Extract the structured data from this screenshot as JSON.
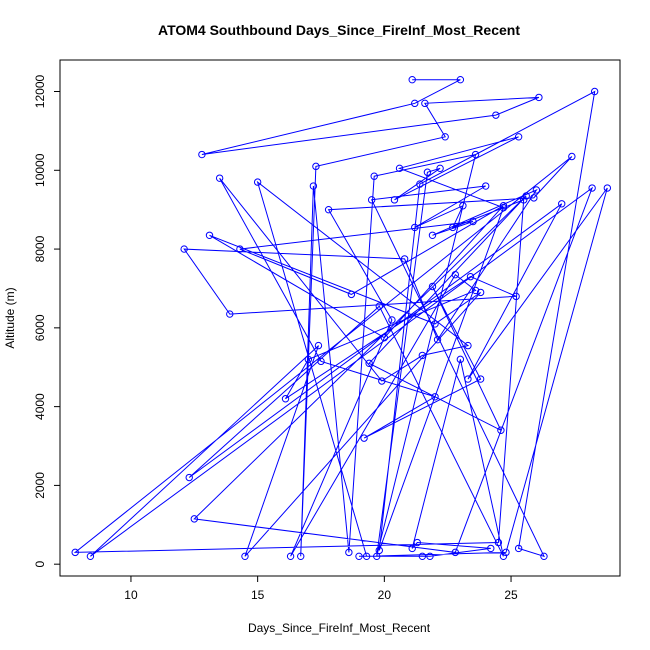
{
  "chart_data": {
    "type": "line",
    "title": "ATOM4 Southbound Days_Since_FireInf_Most_Recent",
    "xlabel": "Days_Since_FireInf_Most_Recent",
    "ylabel": "Altitude (m)",
    "xlim": [
      7.2,
      29.3
    ],
    "ylim": [
      -300,
      12800
    ],
    "x_ticks": [
      10,
      15,
      20,
      25
    ],
    "y_ticks": [
      0,
      2000,
      4000,
      6000,
      8000,
      10000,
      12000
    ],
    "grid": false,
    "colors": {
      "series": "#0000ff"
    },
    "series": [
      {
        "x": [
          21.1,
          23.0,
          21.2,
          12.8,
          24.4,
          26.1,
          21.6,
          22.4,
          17.3,
          16.7,
          17.2,
          18.6,
          19.6,
          23.6,
          19.7,
          21.7,
          22.2,
          20.4,
          25.3,
          20.6,
          24.7,
          19.8,
          21.4,
          28.3,
          25.3,
          26.3,
          19.5,
          24.0,
          21.2,
          23.1,
          22.7,
          25.5,
          24.5,
          7.8,
          27.4,
          25.9,
          17.8,
          20.3,
          16.3,
          22.8,
          23.6,
          17.0,
          16.1,
          23.4,
          25.2,
          13.9,
          12.1,
          20.8,
          22.1,
          26.0,
          21.9,
          23.5,
          14.3,
          18.7,
          24.7,
          20.0,
          13.1,
          22.0,
          23.8,
          14.5,
          17.4,
          8.4,
          28.2,
          22.8,
          12.5,
          25.6,
          19.4,
          24.6,
          21.9,
          23.8,
          19.2,
          22.0,
          17.5,
          13.5,
          19.9,
          21.5,
          23.3,
          15.0,
          19.3,
          24.8,
          28.8,
          23.3,
          27.0,
          12.3,
          19.8,
          24.7,
          23.0,
          21.1,
          21.3,
          24.2,
          21.8,
          21.5,
          19.0
        ],
        "y": [
          12300,
          12300,
          11700,
          10400,
          11400,
          11850,
          11700,
          10850,
          10100,
          200,
          9600,
          300,
          9850,
          10400,
          200,
          9950,
          10050,
          9250,
          10850,
          10050,
          9050,
          350,
          9650,
          12000,
          400,
          200,
          9250,
          9600,
          8550,
          9100,
          8550,
          9250,
          550,
          300,
          10350,
          9300,
          9000,
          6200,
          200,
          7350,
          6950,
          5200,
          4200,
          7300,
          6800,
          6350,
          8000,
          7750,
          5700,
          9500,
          8350,
          8700,
          8000,
          6850,
          9100,
          5750,
          8350,
          6100,
          6900,
          200,
          5550,
          200,
          9550,
          300,
          1150,
          9350,
          5100,
          3400,
          7050,
          4700,
          3200,
          4250,
          5150,
          9800,
          4650,
          5300,
          5550,
          9700,
          200,
          300,
          9550,
          4700,
          9150,
          2200,
          6550,
          200,
          5200,
          400,
          550,
          400,
          200,
          200,
          200
        ]
      }
    ]
  }
}
